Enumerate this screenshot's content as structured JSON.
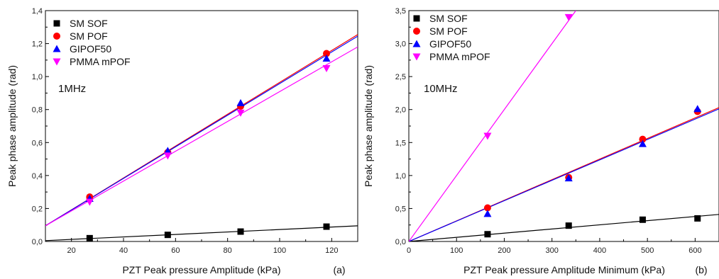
{
  "chart_data": [
    {
      "type": "scatter",
      "panel_label": "(a)",
      "annotation": "1MHz",
      "xlabel": "PZT Peak pressure Amplitude (kPa)",
      "ylabel": "Peak phase amplitude (rad)",
      "xlim": [
        10,
        130
      ],
      "ylim": [
        0,
        1.4
      ],
      "xticks": [
        20,
        40,
        60,
        80,
        100,
        120
      ],
      "yticks": [
        0,
        0.2,
        0.4,
        0.6,
        0.8,
        1.0,
        1.2,
        1.4
      ],
      "ytick_labels": [
        "0,0",
        "0,2",
        "0,4",
        "0,6",
        "0,8",
        "1,0",
        "1,2",
        "1,4"
      ],
      "legend_position": "top-left",
      "series": [
        {
          "name": "SM SOF",
          "marker": "square",
          "color": "#000000",
          "x": [
            27,
            57,
            85,
            118
          ],
          "y": [
            0.02,
            0.04,
            0.06,
            0.09
          ],
          "fit": [
            [
              10,
              0.005
            ],
            [
              130,
              0.095
            ]
          ]
        },
        {
          "name": "SM POF",
          "marker": "circle",
          "color": "#ff0000",
          "x": [
            27,
            57,
            85,
            118
          ],
          "y": [
            0.27,
            0.54,
            0.82,
            1.14
          ],
          "fit": [
            [
              10,
              0.095
            ],
            [
              130,
              1.255
            ]
          ]
        },
        {
          "name": "GIPOF50",
          "marker": "triangle-up",
          "color": "#0000ff",
          "x": [
            27,
            57,
            85,
            118
          ],
          "y": [
            0.26,
            0.55,
            0.84,
            1.11
          ],
          "fit": [
            [
              10,
              0.095
            ],
            [
              130,
              1.245
            ]
          ]
        },
        {
          "name": "PMMA mPOF",
          "marker": "triangle-down",
          "color": "#ff00ff",
          "x": [
            27,
            57,
            85,
            118
          ],
          "y": [
            0.24,
            0.52,
            0.78,
            1.05
          ],
          "fit": [
            [
              10,
              0.095
            ],
            [
              130,
              1.18
            ]
          ]
        }
      ]
    },
    {
      "type": "scatter",
      "panel_label": "(b)",
      "annotation": "10MHz",
      "xlabel": "PZT Peak pressure Amplitude Minimum (kPa)",
      "ylabel": "Peak phase amplitude (rad)",
      "xlim": [
        0,
        650
      ],
      "ylim": [
        0,
        3.5
      ],
      "xticks": [
        0,
        100,
        200,
        300,
        400,
        500,
        600
      ],
      "yticks": [
        0,
        0.5,
        1.0,
        1.5,
        2.0,
        2.5,
        3.0,
        3.5
      ],
      "ytick_labels": [
        "0,0",
        "0,5",
        "1,0",
        "1,5",
        "2,0",
        "2,5",
        "3,0",
        "3,5"
      ],
      "legend_position": "top-left",
      "series": [
        {
          "name": "SM SOF",
          "marker": "square",
          "color": "#000000",
          "x": [
            165,
            335,
            490,
            605
          ],
          "y": [
            0.11,
            0.24,
            0.33,
            0.35
          ],
          "fit": [
            [
              0,
              0
            ],
            [
              650,
              0.41
            ]
          ]
        },
        {
          "name": "SM POF",
          "marker": "circle",
          "color": "#ff0000",
          "x": [
            165,
            335,
            490,
            605
          ],
          "y": [
            0.51,
            0.97,
            1.55,
            1.97
          ],
          "fit": [
            [
              0,
              0
            ],
            [
              650,
              2.03
            ]
          ]
        },
        {
          "name": "GIPOF50",
          "marker": "triangle-up",
          "color": "#0000ff",
          "x": [
            165,
            335,
            490,
            605
          ],
          "y": [
            0.42,
            0.96,
            1.48,
            2.01
          ],
          "fit": [
            [
              0,
              0
            ],
            [
              650,
              2.01
            ]
          ]
        },
        {
          "name": "PMMA mPOF",
          "marker": "triangle-down",
          "color": "#ff00ff",
          "x": [
            165,
            335
          ],
          "y": [
            1.6,
            3.4
          ],
          "fit": [
            [
              0,
              0
            ],
            [
              350,
              3.5
            ]
          ]
        }
      ]
    }
  ]
}
